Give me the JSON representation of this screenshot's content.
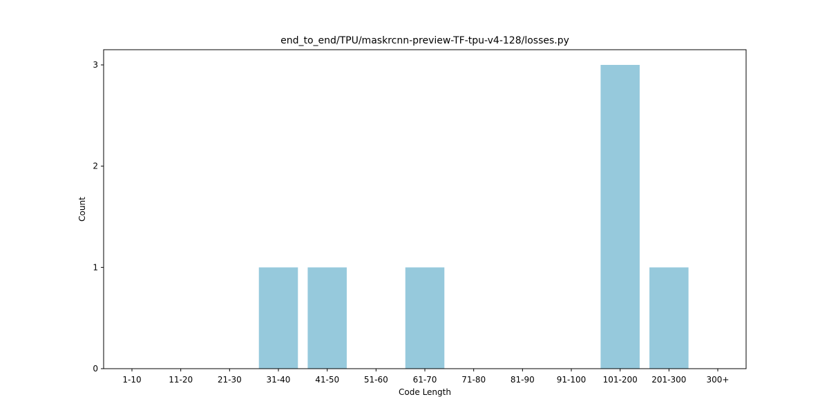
{
  "chart_data": {
    "type": "bar",
    "title": "end_to_end/TPU/maskrcnn-preview-TF-tpu-v4-128/losses.py",
    "xlabel": "Code Length",
    "ylabel": "Count",
    "categories": [
      "1-10",
      "11-20",
      "21-30",
      "31-40",
      "41-50",
      "51-60",
      "61-70",
      "71-80",
      "81-90",
      "91-100",
      "101-200",
      "201-300",
      "300+"
    ],
    "values": [
      0,
      0,
      0,
      1,
      1,
      0,
      1,
      0,
      0,
      0,
      3,
      1,
      0
    ],
    "ylim": [
      0,
      3.15
    ],
    "yticks": [
      0,
      1,
      2,
      3
    ],
    "bar_color": "#96c9dc",
    "grid": false,
    "legend": "none"
  }
}
